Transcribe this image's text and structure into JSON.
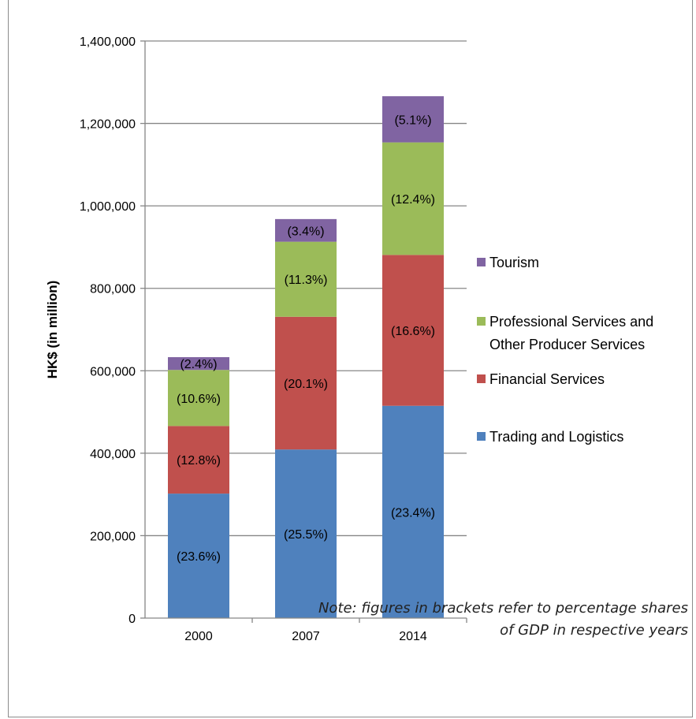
{
  "chart_data": {
    "type": "bar",
    "stacked": true,
    "ylabel": "HK$ (in million)",
    "ylim": [
      0,
      1400000
    ],
    "yticks": [
      0,
      200000,
      400000,
      600000,
      800000,
      1000000,
      1200000,
      1400000
    ],
    "ytick_labels": [
      "0",
      "200,000",
      "400,000",
      "600,000",
      "800,000",
      "1,000,000",
      "1,200,000",
      "1,400,000"
    ],
    "categories": [
      "2000",
      "2007",
      "2014"
    ],
    "series": [
      {
        "name": "Trading and Logistics",
        "color": "#4f81bd",
        "values": [
          302000,
          409000,
          515000
        ],
        "labels": [
          "(23.6%)",
          "(25.5%)",
          "(23.4%)"
        ]
      },
      {
        "name": "Financial Services",
        "color": "#c0504d",
        "values": [
          164000,
          322000,
          366000
        ],
        "labels": [
          "(12.8%)",
          "(20.1%)",
          "(16.6%)"
        ]
      },
      {
        "name": "Professional Services and Other Producer Services",
        "color": "#9bbb59",
        "values": [
          136000,
          182000,
          273000
        ],
        "labels": [
          "(10.6%)",
          "(11.3%)",
          "(12.4%)"
        ]
      },
      {
        "name": "Tourism",
        "color": "#8064a2",
        "values": [
          31000,
          55000,
          112000
        ],
        "labels": [
          "(2.4%)",
          "(3.4%)",
          "(5.1%)"
        ]
      }
    ],
    "legend_position": "right",
    "grid": true
  },
  "legend": {
    "tourism": "Tourism",
    "professional_line1": "Professional Services and",
    "professional_line2": "Other Producer Services",
    "financial": "Financial Services",
    "trading": "Trading and Logistics"
  },
  "note": {
    "line1": "Note: figures in brackets refer to percentage shares",
    "line2": "of GDP in respective years"
  }
}
